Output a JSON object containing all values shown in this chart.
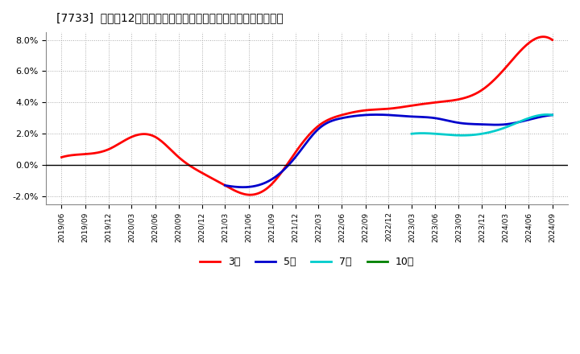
{
  "title": "[7733]  売上高12か月移動合計の対前年同期増減率の平均値の推移",
  "ylabel": "",
  "ylim": [
    -0.025,
    0.085
  ],
  "yticks": [
    -0.02,
    0.0,
    0.02,
    0.04,
    0.06,
    0.08
  ],
  "ytick_labels": [
    "-2.0%",
    "0.0%",
    "2.0%",
    "4.0%",
    "6.0%",
    "8.0%"
  ],
  "background_color": "#ffffff",
  "grid_color": "#cccccc",
  "series": {
    "3year": {
      "color": "#ff0000",
      "label": "3年",
      "points": [
        [
          "2019-06",
          0.005
        ],
        [
          "2019-09",
          0.007
        ],
        [
          "2019-12",
          0.01
        ],
        [
          "2020-03",
          0.018
        ],
        [
          "2020-06",
          0.018
        ],
        [
          "2020-09",
          0.005
        ],
        [
          "2020-12",
          -0.005
        ],
        [
          "2021-03",
          -0.013
        ],
        [
          "2021-06",
          -0.019
        ],
        [
          "2021-09",
          -0.012
        ],
        [
          "2021-12",
          0.008
        ],
        [
          "2022-03",
          0.025
        ],
        [
          "2022-06",
          0.032
        ],
        [
          "2022-09",
          0.035
        ],
        [
          "2022-12",
          0.036
        ],
        [
          "2023-03",
          0.038
        ],
        [
          "2023-06",
          0.04
        ],
        [
          "2023-09",
          0.042
        ],
        [
          "2023-12",
          0.048
        ],
        [
          "2024-03",
          0.062
        ],
        [
          "2024-06",
          0.078
        ],
        [
          "2024-09",
          0.08
        ]
      ]
    },
    "5year": {
      "color": "#0000cc",
      "label": "5年",
      "points": [
        [
          "2021-03",
          -0.013
        ],
        [
          "2021-06",
          -0.014
        ],
        [
          "2021-09",
          -0.009
        ],
        [
          "2021-12",
          0.005
        ],
        [
          "2022-03",
          0.023
        ],
        [
          "2022-06",
          0.03
        ],
        [
          "2022-09",
          0.032
        ],
        [
          "2022-12",
          0.032
        ],
        [
          "2023-03",
          0.031
        ],
        [
          "2023-06",
          0.03
        ],
        [
          "2023-09",
          0.027
        ],
        [
          "2023-12",
          0.026
        ],
        [
          "2024-03",
          0.026
        ],
        [
          "2024-06",
          0.029
        ],
        [
          "2024-09",
          0.032
        ]
      ]
    },
    "7year": {
      "color": "#00cccc",
      "label": "7年",
      "points": [
        [
          "2023-03",
          0.02
        ],
        [
          "2023-06",
          0.02
        ],
        [
          "2023-09",
          0.019
        ],
        [
          "2023-12",
          0.02
        ],
        [
          "2024-03",
          0.024
        ],
        [
          "2024-06",
          0.03
        ],
        [
          "2024-09",
          0.032
        ]
      ]
    },
    "10year": {
      "color": "#008000",
      "label": "10年",
      "points": []
    }
  },
  "legend_labels": [
    "3年",
    "5年",
    "7年",
    "10年"
  ],
  "legend_colors": [
    "#ff0000",
    "#0000cc",
    "#00cccc",
    "#008000"
  ]
}
